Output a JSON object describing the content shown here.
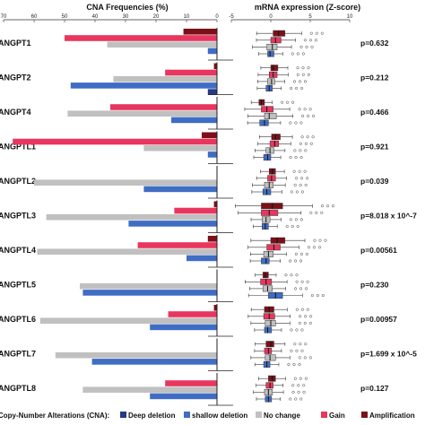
{
  "chart_data": [
    {
      "type": "bar",
      "orientation": "horizontal-reversed",
      "title": "CNA Frequencies (%)",
      "xlim": [
        70,
        0
      ],
      "xticks": [
        70,
        60,
        50,
        40,
        30,
        20,
        10,
        0
      ],
      "categories": [
        "ANGPT1",
        "ANGPT2",
        "ANGPT4",
        "ANGPTL1",
        "ANGPTL2",
        "ANGPTL3",
        "ANGPTL4",
        "ANGPTL5",
        "ANGPTL6",
        "ANGPTL7",
        "ANGPTL8"
      ],
      "series": [
        {
          "name": "Amplification",
          "color": "#7b1018",
          "values": [
            11,
            1,
            0,
            5,
            0,
            1,
            3,
            0,
            1,
            0,
            0
          ]
        },
        {
          "name": "Gain",
          "color": "#e8365e",
          "values": [
            50,
            17,
            35,
            67,
            0,
            14,
            26,
            0,
            16,
            0,
            17
          ]
        },
        {
          "name": "No change",
          "color": "#c0c0c0",
          "values": [
            36,
            34,
            49,
            24,
            60,
            56,
            59,
            45,
            58,
            53,
            44
          ]
        },
        {
          "name": "shallow deletion",
          "color": "#3f6dc4",
          "values": [
            3,
            48,
            15,
            3,
            24,
            29,
            10,
            44,
            22,
            41,
            22
          ]
        },
        {
          "name": "Deep deletion",
          "color": "#233a86",
          "values": [
            0,
            3,
            0,
            0,
            0,
            0,
            0,
            0,
            0,
            0,
            0
          ]
        }
      ]
    },
    {
      "type": "boxplot",
      "title": "mRNA expression (Z-score)",
      "xlim": [
        -5,
        10
      ],
      "xticks": [
        -5,
        0,
        5,
        10
      ],
      "categories": [
        "ANGPT1",
        "ANGPT2",
        "ANGPT4",
        "ANGPTL1",
        "ANGPTL2",
        "ANGPTL3",
        "ANGPTL4",
        "ANGPTL5",
        "ANGPTL6",
        "ANGPTL7",
        "ANGPTL8"
      ],
      "groups": [
        "Amplification",
        "Gain",
        "No change",
        "shallow deletion"
      ],
      "boxes": [
        [
          [
            0.3,
            1,
            1.8
          ],
          [
            0,
            0.6,
            1.3
          ],
          [
            -0.5,
            0.2,
            0.8
          ],
          [
            -0.4,
            -0.1,
            0.4
          ]
        ],
        [
          [
            0,
            0.3,
            0.9
          ],
          [
            -0.2,
            0.3,
            0.8
          ],
          [
            -0.4,
            0.1,
            0.5
          ],
          [
            -0.6,
            -0.2,
            0.2
          ]
        ],
        [
          [
            -1.5,
            -1.2,
            -0.8
          ],
          [
            -1.2,
            -0.5,
            0.3
          ],
          [
            -0.8,
            -0.2,
            0.7
          ],
          [
            -1.4,
            -0.8,
            -0.3
          ]
        ],
        [
          [
            0.1,
            0.6,
            1.2
          ],
          [
            -0.1,
            0.5,
            1
          ],
          [
            -0.6,
            -0.1,
            0.4
          ],
          [
            -0.9,
            -0.4,
            0
          ]
        ],
        [
          [
            -0.2,
            0.2,
            0.6
          ],
          [
            -0.4,
            0.1,
            0.6
          ],
          [
            -0.8,
            -0.2,
            0.3
          ],
          [
            -1,
            -0.5,
            0
          ]
        ],
        [
          [
            -1.2,
            0.2,
            1.5
          ],
          [
            -1.2,
            -0.2,
            0.9
          ],
          [
            -1.1,
            -0.6,
            -0.1
          ],
          [
            -1.1,
            -0.7,
            -0.3
          ]
        ],
        [
          [
            0,
            0.8,
            1.8
          ],
          [
            -0.5,
            0.4,
            1.2
          ],
          [
            -0.9,
            -0.3,
            0.3
          ],
          [
            -1.2,
            -0.6,
            -0.2
          ]
        ],
        [
          [
            -1,
            -0.7,
            -0.3
          ],
          [
            -1.3,
            -0.6,
            0.1
          ],
          [
            -1,
            -0.4,
            0.2
          ],
          [
            -0.3,
            0.6,
            1.5
          ]
        ],
        [
          [
            -0.8,
            -0.2,
            0.4
          ],
          [
            -0.9,
            -0.2,
            0.5
          ],
          [
            -0.7,
            0,
            0.6
          ],
          [
            -0.8,
            -0.4,
            0.1
          ]
        ],
        [
          [
            -0.6,
            0,
            0.4
          ],
          [
            -0.8,
            -0.3,
            0.1
          ],
          [
            -0.7,
            -0.1,
            0.6
          ],
          [
            -0.9,
            -0.5,
            -0.1
          ]
        ],
        [
          [
            -0.3,
            0.2,
            0.6
          ],
          [
            -0.6,
            -0.1,
            0.3
          ],
          [
            -0.8,
            -0.3,
            0.2
          ],
          [
            -0.7,
            -0.3,
            0.1
          ]
        ]
      ],
      "pvalues": [
        "p=0.632",
        "p=0.212",
        "p=0.466",
        "p=0.921",
        "p=0.039",
        "p=8.018 x 10^-7",
        "p=0.00561",
        "p=0.230",
        "p=0.00957",
        "p=1.699 x 10^-5",
        "p=0.127"
      ]
    }
  ],
  "legend": {
    "prefix": "Copy-Number Alterations (CNA):",
    "items": [
      {
        "label": "Deep deletion",
        "color": "#233a86"
      },
      {
        "label": "shallow deletion",
        "color": "#3f6dc4"
      },
      {
        "label": "No change",
        "color": "#c0c0c0"
      },
      {
        "label": "Gain",
        "color": "#e8365e"
      },
      {
        "label": "Amplification",
        "color": "#7b1018"
      }
    ]
  }
}
